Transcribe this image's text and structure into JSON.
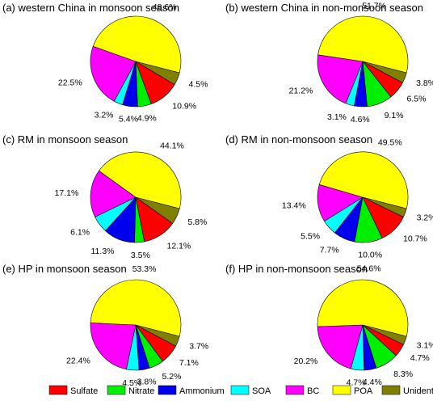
{
  "colors": {
    "Sulfate": "#ff0000",
    "Nitrate": "#00ee00",
    "Ammonium": "#0000ee",
    "SOA": "#00ffff",
    "BC": "#ff00ff",
    "POA": "#ffff00",
    "Unidentified": "#808000"
  },
  "legend": [
    "Sulfate",
    "Nitrate",
    "Ammonium",
    "SOA",
    "BC",
    "POA",
    "Unidentified"
  ],
  "chart_data": [
    {
      "type": "pie",
      "title": "(a) western China  in monsoon season",
      "slices": [
        {
          "label": "Unidentified",
          "value": 4.5,
          "text": "4.5%"
        },
        {
          "label": "Sulfate",
          "value": 10.9,
          "text": "10.9%"
        },
        {
          "label": "Nitrate",
          "value": 4.9,
          "text": "4.9%"
        },
        {
          "label": "Ammonium",
          "value": 5.4,
          "text": "5.4%"
        },
        {
          "label": "SOA",
          "value": 3.2,
          "text": "3.2%"
        },
        {
          "label": "BC",
          "value": 22.5,
          "text": "22.5%"
        },
        {
          "label": "POA",
          "value": 48.6,
          "text": "48.6%"
        }
      ]
    },
    {
      "type": "pie",
      "title": "(b) western China  in non-monsoon season",
      "slices": [
        {
          "label": "Unidentified",
          "value": 3.8,
          "text": "3.8%"
        },
        {
          "label": "Sulfate",
          "value": 6.5,
          "text": "6.5%"
        },
        {
          "label": "Nitrate",
          "value": 9.1,
          "text": "9.1%"
        },
        {
          "label": "Ammonium",
          "value": 4.6,
          "text": "4.6%"
        },
        {
          "label": "SOA",
          "value": 3.1,
          "text": "3.1%"
        },
        {
          "label": "BC",
          "value": 21.2,
          "text": "21.2%"
        },
        {
          "label": "POA",
          "value": 51.7,
          "text": "51.7%"
        }
      ]
    },
    {
      "type": "pie",
      "title": "(c) RM in monsoon season",
      "slices": [
        {
          "label": "Unidentified",
          "value": 5.8,
          "text": "5.8%"
        },
        {
          "label": "Sulfate",
          "value": 12.1,
          "text": "12.1%"
        },
        {
          "label": "Nitrate",
          "value": 3.5,
          "text": "3.5%"
        },
        {
          "label": "Ammonium",
          "value": 11.3,
          "text": "11.3%"
        },
        {
          "label": "SOA",
          "value": 6.1,
          "text": "6.1%"
        },
        {
          "label": "BC",
          "value": 17.1,
          "text": "17.1%"
        },
        {
          "label": "POA",
          "value": 44.1,
          "text": "44.1%"
        }
      ]
    },
    {
      "type": "pie",
      "title": "(d) RM in non-monsoon season",
      "slices": [
        {
          "label": "Unidentified",
          "value": 3.2,
          "text": "3.2%"
        },
        {
          "label": "Sulfate",
          "value": 10.7,
          "text": "10.7%"
        },
        {
          "label": "Nitrate",
          "value": 10.0,
          "text": "10.0%"
        },
        {
          "label": "Ammonium",
          "value": 7.7,
          "text": "7.7%"
        },
        {
          "label": "SOA",
          "value": 5.5,
          "text": "5.5%"
        },
        {
          "label": "BC",
          "value": 13.4,
          "text": "13.4%"
        },
        {
          "label": "POA",
          "value": 49.5,
          "text": "49.5%"
        }
      ]
    },
    {
      "type": "pie",
      "title": "(e) HP in monsoon season",
      "slices": [
        {
          "label": "Unidentified",
          "value": 3.7,
          "text": "3.7%"
        },
        {
          "label": "Sulfate",
          "value": 7.1,
          "text": "7.1%"
        },
        {
          "label": "Nitrate",
          "value": 5.2,
          "text": "5.2%"
        },
        {
          "label": "Ammonium",
          "value": 3.8,
          "text": "3.8%"
        },
        {
          "label": "SOA",
          "value": 4.5,
          "text": "4.5%"
        },
        {
          "label": "BC",
          "value": 22.4,
          "text": "22.4%"
        },
        {
          "label": "POA",
          "value": 53.3,
          "text": "53.3%"
        }
      ]
    },
    {
      "type": "pie",
      "title": "(f) HP in non-monsoon season",
      "slices": [
        {
          "label": "Unidentified",
          "value": 3.1,
          "text": "3.1%"
        },
        {
          "label": "Sulfate",
          "value": 4.7,
          "text": "4.7%"
        },
        {
          "label": "Nitrate",
          "value": 8.3,
          "text": "8.3%"
        },
        {
          "label": "Ammonium",
          "value": 4.4,
          "text": "4.4%"
        },
        {
          "label": "SOA",
          "value": 4.7,
          "text": "4.7%"
        },
        {
          "label": "BC",
          "value": 20.2,
          "text": "20.2%"
        },
        {
          "label": "POA",
          "value": 54.6,
          "text": "54.6%"
        }
      ]
    }
  ]
}
